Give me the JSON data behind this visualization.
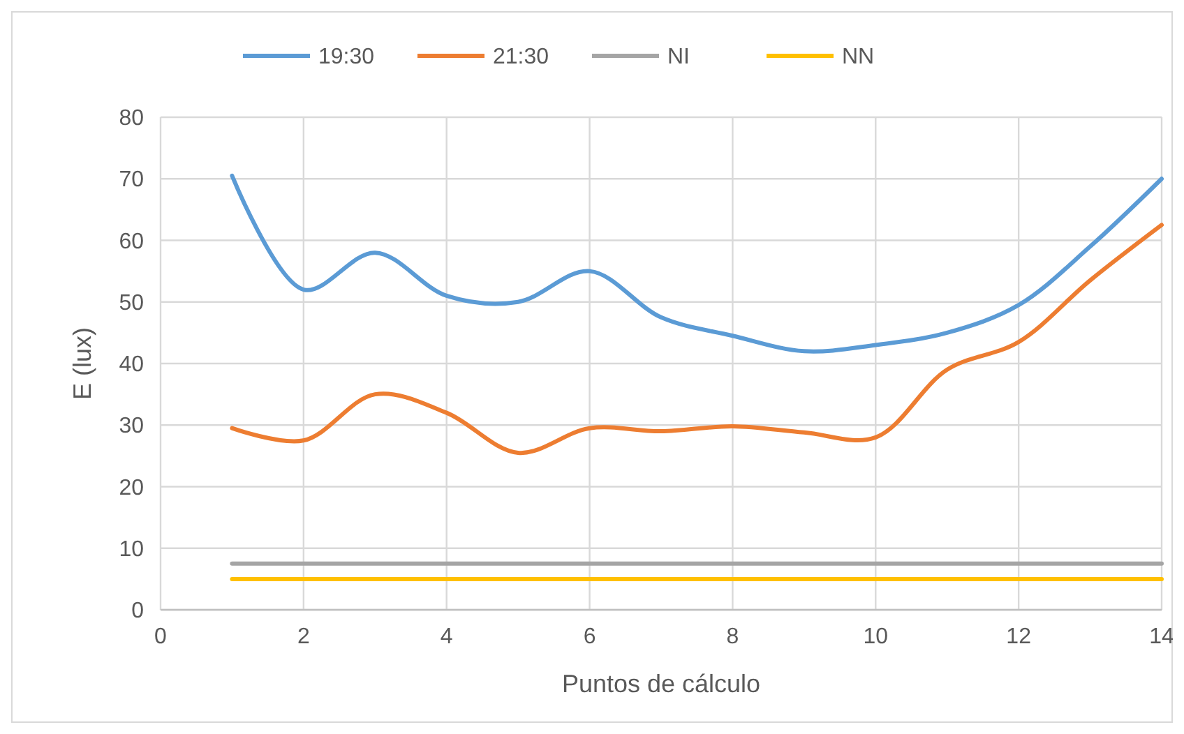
{
  "chart_data": {
    "type": "line",
    "xlabel": "Puntos de cálculo",
    "ylabel": "E (lux)",
    "x": [
      1,
      2,
      3,
      4,
      5,
      6,
      7,
      8,
      9,
      10,
      11,
      12,
      13,
      14
    ],
    "series": [
      {
        "name": "19:30",
        "color": "#5b9bd5",
        "values": [
          70.5,
          52,
          58,
          51,
          50,
          55,
          47.5,
          44.5,
          42,
          43,
          45,
          49.5,
          59,
          70
        ]
      },
      {
        "name": "21:30",
        "color": "#ed7d31",
        "values": [
          29.5,
          27.5,
          35,
          32,
          25.5,
          29.5,
          29,
          29.8,
          28.8,
          28,
          39,
          43.5,
          53.5,
          62.5
        ]
      },
      {
        "name": "NI",
        "color": "#a5a5a5",
        "values": [
          7.5,
          7.5,
          7.5,
          7.5,
          7.5,
          7.5,
          7.5,
          7.5,
          7.5,
          7.5,
          7.5,
          7.5,
          7.5,
          7.5
        ]
      },
      {
        "name": "NN",
        "color": "#ffc000",
        "values": [
          5,
          5,
          5,
          5,
          5,
          5,
          5,
          5,
          5,
          5,
          5,
          5,
          5,
          5
        ]
      }
    ],
    "xlim": [
      0,
      14
    ],
    "xticks": [
      0,
      2,
      4,
      6,
      8,
      10,
      12,
      14
    ],
    "ylim": [
      0,
      80
    ],
    "yticks": [
      0,
      10,
      20,
      30,
      40,
      50,
      60,
      70,
      80
    ],
    "grid": true,
    "legend": "top",
    "marker": "none",
    "line_style": "solid"
  }
}
